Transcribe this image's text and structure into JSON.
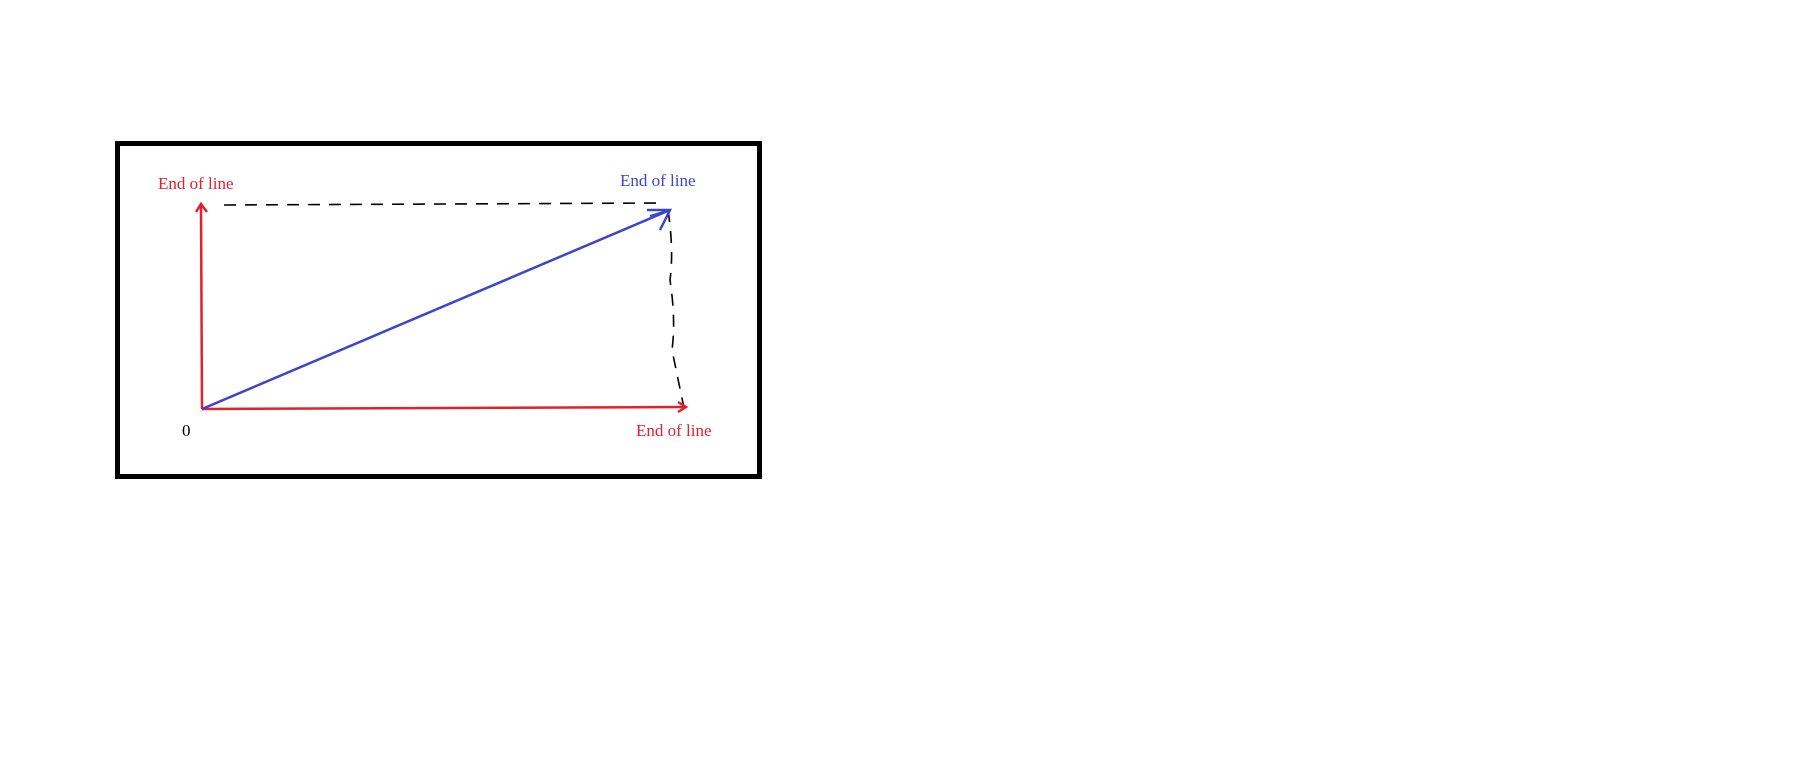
{
  "diagram": {
    "labels": {
      "vertical_end": "End of line",
      "diagonal_end": "End of line",
      "horizontal_end": "End of line",
      "origin": "0"
    },
    "colors": {
      "red_line": "#e0212e",
      "blue_line": "#3c46c8",
      "dashed_line": "#000000",
      "frame": "#000000"
    }
  }
}
